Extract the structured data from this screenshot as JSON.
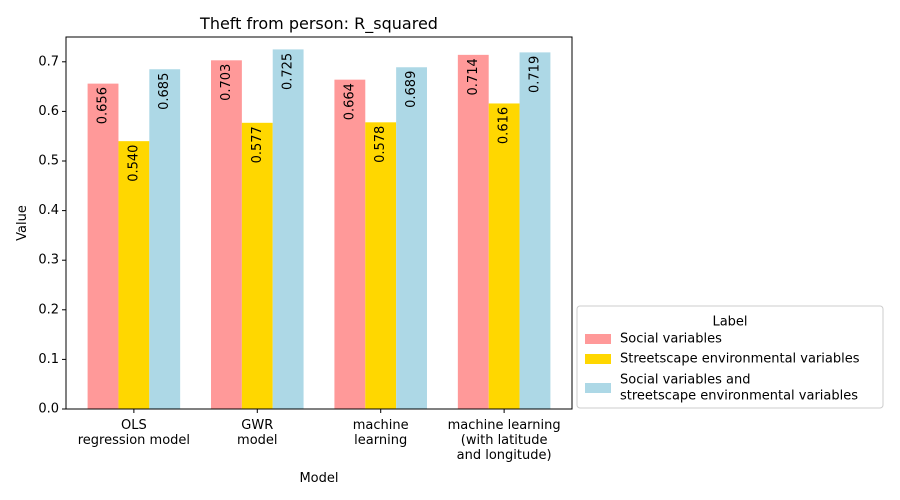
{
  "chart_data": {
    "type": "bar",
    "title": "Theft from person: R_squared",
    "xlabel": "Model",
    "ylabel": "Value",
    "ylim": [
      0,
      0.75
    ],
    "yticks": [
      "0.0",
      "0.1",
      "0.2",
      "0.3",
      "0.4",
      "0.5",
      "0.6",
      "0.7"
    ],
    "categories": [
      [
        "OLS",
        "regression model"
      ],
      [
        "GWR",
        "model"
      ],
      [
        "machine",
        "learning"
      ],
      [
        "machine learning",
        "(with latitude",
        "and longitude)"
      ]
    ],
    "series": [
      {
        "name": [
          "Social variables"
        ],
        "color": "#ff9999",
        "values": [
          0.656,
          0.703,
          0.664,
          0.714
        ],
        "labels": [
          "0.656",
          "0.703",
          "0.664",
          "0.714"
        ]
      },
      {
        "name": [
          "Streetscape environmental variables"
        ],
        "color": "#ffd700",
        "values": [
          0.54,
          0.577,
          0.578,
          0.616
        ],
        "labels": [
          "0.540",
          "0.577",
          "0.578",
          "0.616"
        ]
      },
      {
        "name": [
          "Social variables and",
          "streetscape environmental variables"
        ],
        "color": "#add8e6",
        "values": [
          0.685,
          0.725,
          0.689,
          0.719
        ],
        "labels": [
          "0.685",
          "0.725",
          "0.689",
          "0.719"
        ]
      }
    ],
    "legend": {
      "title": "Label",
      "placement": "outside-right-bottom"
    },
    "grid": false
  }
}
